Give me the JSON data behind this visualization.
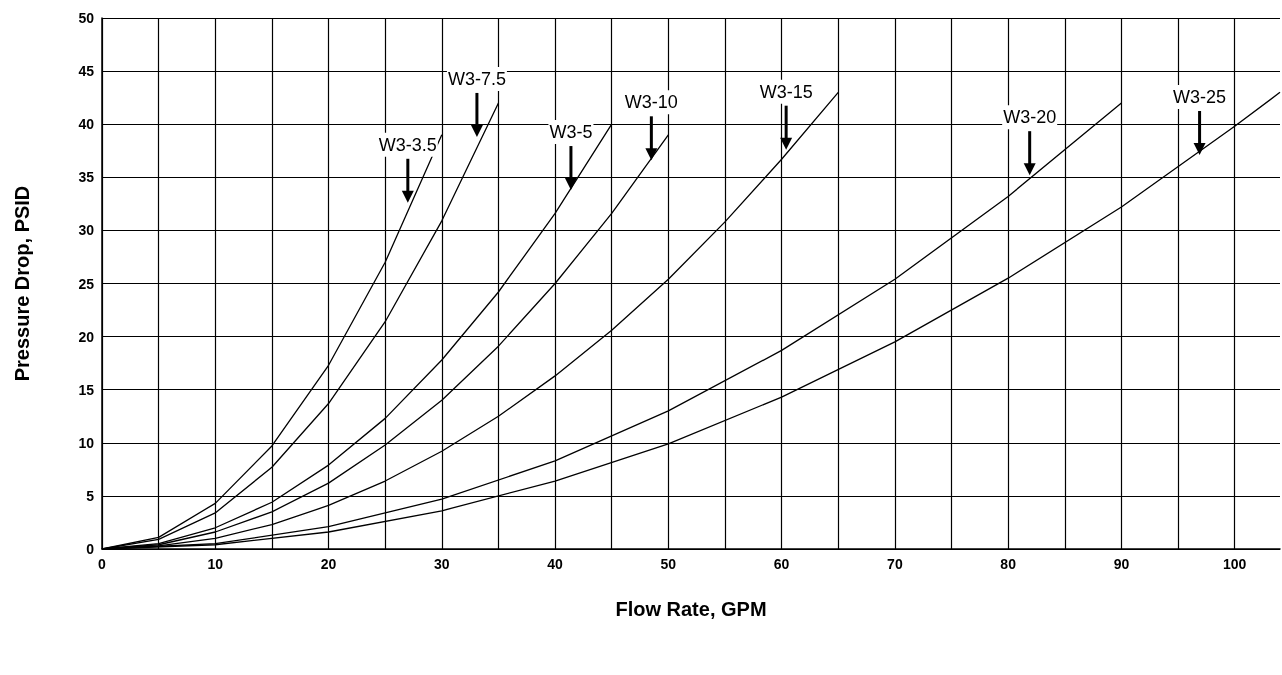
{
  "chart_data": {
    "type": "line",
    "xlabel": "Flow Rate, GPM",
    "ylabel": "Pressure Drop, PSID",
    "xlim": [
      0,
      104
    ],
    "xticks": [
      0,
      {
        "value": 5,
        "label": null
      },
      10,
      {
        "value": 15,
        "label": null
      },
      20,
      {
        "value": 25,
        "label": null
      },
      30,
      {
        "value": 35,
        "label": null
      },
      40,
      {
        "value": 45,
        "label": null
      },
      50,
      {
        "value": 55,
        "label": null
      },
      60,
      {
        "value": 65,
        "label": null
      },
      70,
      {
        "value": 75,
        "label": null
      },
      80,
      {
        "value": 85,
        "label": null
      },
      90,
      {
        "value": 95,
        "label": null
      },
      100
    ],
    "ylim": [
      0,
      50
    ],
    "yticks": [
      0,
      5,
      10,
      15,
      20,
      25,
      30,
      35,
      40,
      45,
      50
    ],
    "grid": true,
    "marker": "none",
    "line_style": "solid",
    "series": [
      {
        "color": "#000000",
        "x": [
          0,
          5,
          10,
          15,
          20,
          25,
          30
        ],
        "values": [
          0,
          1.1,
          4.3,
          9.7,
          17.3,
          27,
          39
        ]
      },
      {
        "color": "#000000",
        "x": [
          0,
          5,
          10,
          15,
          20,
          25,
          30,
          35
        ],
        "values": [
          0,
          0.9,
          3.4,
          7.7,
          13.7,
          21.4,
          30.9,
          42
        ]
      },
      {
        "color": "#000000",
        "x": [
          0,
          5,
          10,
          15,
          20,
          25,
          30,
          35,
          40,
          45
        ],
        "values": [
          0,
          0.5,
          2,
          4.4,
          7.9,
          12.3,
          17.8,
          24.2,
          31.6,
          40
        ]
      },
      {
        "color": "#000000",
        "x": [
          0,
          5,
          10,
          15,
          20,
          25,
          30,
          35,
          40,
          45,
          50
        ],
        "values": [
          0,
          0.4,
          1.6,
          3.5,
          6.2,
          9.8,
          14,
          19.1,
          25,
          31.6,
          39
        ]
      },
      {
        "color": "#000000",
        "x": [
          0,
          5,
          10,
          15,
          20,
          25,
          30,
          35,
          40,
          45,
          50,
          55,
          60,
          65
        ],
        "values": [
          0,
          0.3,
          1,
          2.3,
          4.1,
          6.4,
          9.2,
          12.5,
          16.3,
          20.6,
          25.4,
          30.8,
          36.7,
          43
        ]
      },
      {
        "color": "#000000",
        "x": [
          0,
          10,
          20,
          30,
          40,
          50,
          60,
          70,
          80,
          90
        ],
        "values": [
          0,
          0.5,
          2.1,
          4.7,
          8.3,
          13,
          18.7,
          25.4,
          33.2,
          42
        ]
      },
      {
        "color": "#000000",
        "x": [
          0,
          10,
          20,
          30,
          40,
          50,
          60,
          70,
          80,
          90,
          100,
          104
        ],
        "values": [
          0,
          0.4,
          1.6,
          3.6,
          6.4,
          9.9,
          14.3,
          19.5,
          25.5,
          32.2,
          39.8,
          43
        ]
      }
    ],
    "annotations": [
      {
        "text": "W3-3.5",
        "x": 27,
        "y": 32.6
      },
      {
        "text": "W3-7.5",
        "x": 33.1,
        "y": 38.8
      },
      {
        "text": "W3-5",
        "x": 41.4,
        "y": 33.8
      },
      {
        "text": "W3-10",
        "x": 48.5,
        "y": 36.6
      },
      {
        "text": "W3-15",
        "x": 60.4,
        "y": 37.6
      },
      {
        "text": "W3-20",
        "x": 81.9,
        "y": 35.2
      },
      {
        "text": "W3-25",
        "x": 96.9,
        "y": 37.1
      }
    ]
  }
}
